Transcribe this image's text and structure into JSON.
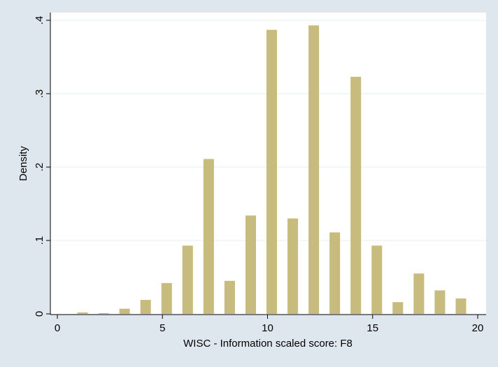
{
  "chart_data": {
    "type": "bar",
    "title": "",
    "xlabel": "WISC - Information scaled score: F8",
    "ylabel": "Density",
    "xlim": [
      0,
      20
    ],
    "ylim": [
      0,
      0.4
    ],
    "x_ticks": [
      0,
      5,
      10,
      15,
      20
    ],
    "x_tick_labels": [
      "0",
      "5",
      "10",
      "15",
      "20"
    ],
    "y_ticks": [
      0,
      0.1,
      0.2,
      0.3,
      0.4
    ],
    "y_tick_labels": [
      "0",
      ".1",
      ".2",
      ".3",
      ".4"
    ],
    "grid": "horizontal",
    "legend": "none",
    "bar_width": 0.5,
    "x": [
      1.2,
      2.2,
      3.2,
      4.2,
      5.2,
      6.2,
      7.2,
      8.2,
      9.2,
      10.2,
      11.2,
      12.2,
      13.2,
      14.2,
      15.2,
      16.2,
      17.2,
      18.2,
      19.2
    ],
    "values": [
      0.002,
      0.001,
      0.007,
      0.019,
      0.042,
      0.093,
      0.211,
      0.045,
      0.134,
      0.387,
      0.13,
      0.393,
      0.111,
      0.323,
      0.093,
      0.016,
      0.055,
      0.032,
      0.021
    ],
    "colors": {
      "bar": "#c8bb7e",
      "plot_background": "#ffffff",
      "outer_background": "#dfe7ee",
      "grid": "#eaf2f3",
      "axis": "#000000"
    }
  }
}
